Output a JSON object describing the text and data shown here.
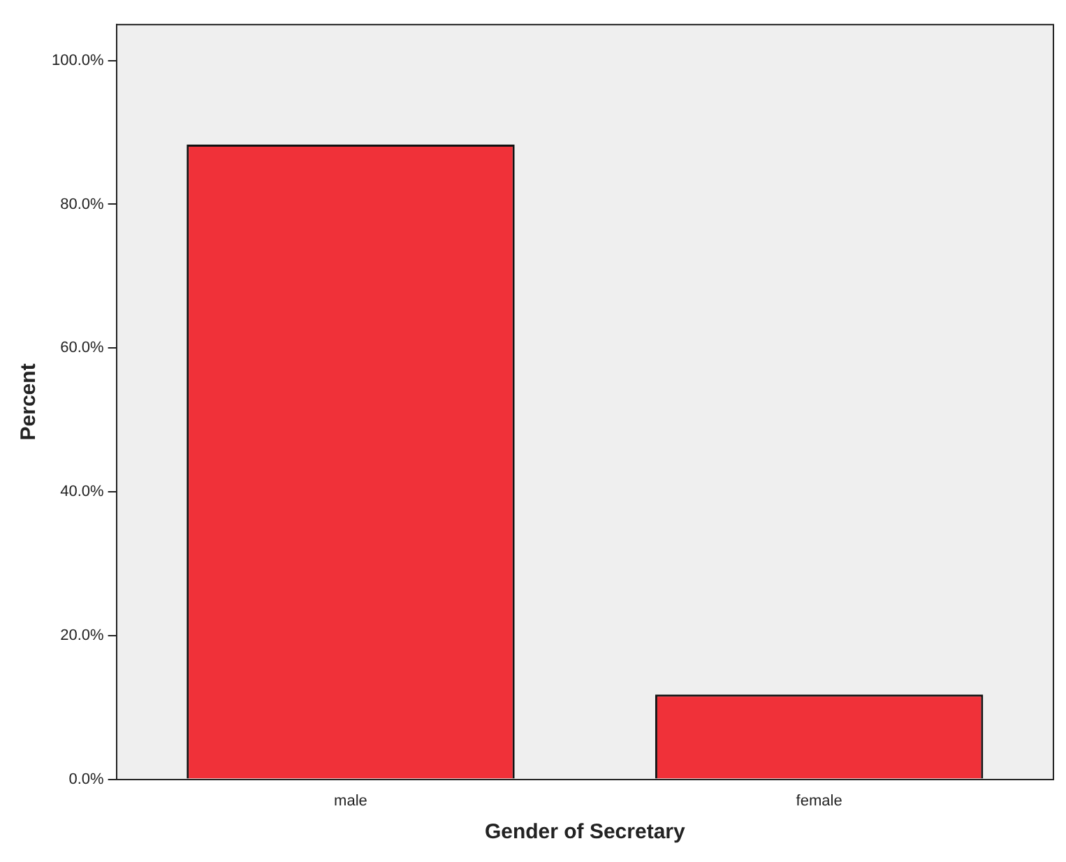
{
  "chart_data": {
    "type": "bar",
    "xlabel": "Gender of Secretary",
    "ylabel": "Percent",
    "categories": [
      "male",
      "female"
    ],
    "values": [
      88.3,
      11.8
    ],
    "color": "#f03139",
    "ylim": [
      0,
      105
    ],
    "yticks": [
      {
        "value": 0,
        "label": "0.0%"
      },
      {
        "value": 20,
        "label": "20.0%"
      },
      {
        "value": 40,
        "label": "40.0%"
      },
      {
        "value": 60,
        "label": "60.0%"
      },
      {
        "value": 80,
        "label": "80.0%"
      },
      {
        "value": 100,
        "label": "100.0%"
      }
    ],
    "grid": false,
    "legend": false
  }
}
